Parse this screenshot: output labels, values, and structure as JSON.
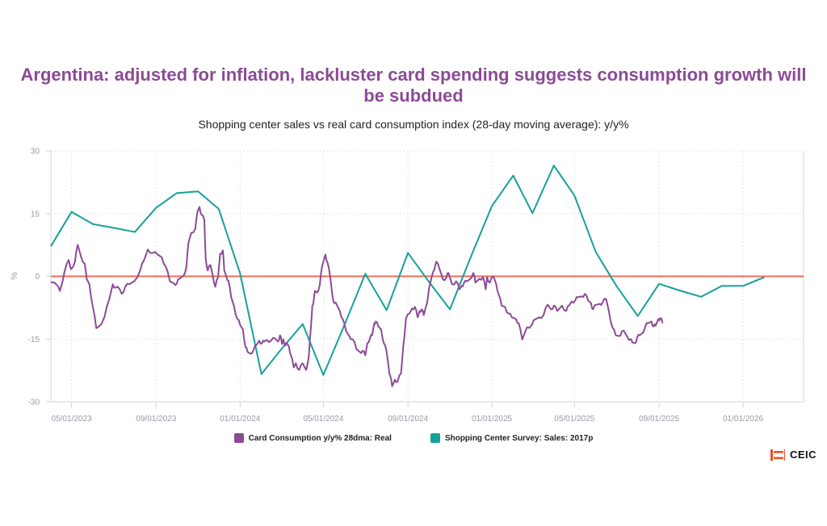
{
  "header": {
    "title": "Argentina: adjusted for inflation, lackluster card spending suggests consumption growth will be subdued",
    "subtitle": "Shopping center sales vs real card consumption index (28-day moving average): y/y%"
  },
  "branding": {
    "logo_text": "CEIC",
    "logo_color": "#f04e23"
  },
  "chart_data": {
    "type": "line",
    "title": "Argentina: adjusted for inflation, lackluster card spending suggests consumption growth will be subdued",
    "subtitle": "Shopping center sales vs real card consumption index (28-day moving average): y/y%",
    "xlabel": "",
    "ylabel": "%",
    "xlim": [
      "2023-04-01",
      "2026-03-30"
    ],
    "ylim": [
      -30,
      30
    ],
    "y_ticks": [
      30,
      15,
      0,
      -15,
      -30
    ],
    "y_tick_labels": [
      "30",
      "15",
      "0",
      "-15",
      "-30"
    ],
    "x_ticks": [
      "2023-05-01",
      "2023-09-01",
      "2024-01-01",
      "2024-05-01",
      "2024-09-01",
      "2025-01-01",
      "2025-05-01",
      "2025-09-01",
      "2026-01-01"
    ],
    "x_tick_labels": [
      "05/01/2023",
      "09/01/2023",
      "01/01/2024",
      "05/01/2024",
      "09/01/2024",
      "01/01/2025",
      "05/01/2025",
      "09/01/2025",
      "01/01/2026"
    ],
    "grid": true,
    "reference_line": {
      "value": 0,
      "color": "#f26b5b"
    },
    "legend_position": "bottom",
    "series": [
      {
        "name": "Card Consumption y/y% 28dma: Real",
        "color": "#8b4a96",
        "x_day_offset_from_2023-05-01": [
          -30,
          -19,
          -17,
          -10,
          -4,
          -1,
          5,
          9,
          14,
          19,
          22,
          26,
          31,
          36,
          40,
          48,
          55,
          60,
          64,
          70,
          73,
          78,
          84,
          91,
          100,
          105,
          111,
          118,
          125,
          131,
          137,
          143,
          149,
          153,
          157,
          163,
          167,
          170,
          174,
          180,
          183,
          186,
          189,
          193,
          195,
          198,
          202,
          205,
          209,
          213,
          216,
          220,
          222,
          225,
          228,
          232,
          236,
          241,
          245,
          249,
          253,
          256,
          260,
          265,
          269,
          273,
          277,
          280,
          284,
          290,
          296,
          300,
          303,
          306,
          308,
          311,
          313,
          316,
          319,
          323,
          326,
          331,
          336,
          341,
          345,
          348,
          350,
          352,
          354,
          357,
          361,
          364,
          369,
          372,
          376,
          379,
          382,
          386,
          390,
          394,
          399,
          403,
          409,
          414,
          419,
          423,
          427,
          430,
          434,
          437,
          440,
          442,
          446,
          450,
          454,
          458,
          461,
          463,
          466,
          470,
          474,
          479,
          482,
          486,
          491,
          495,
          499,
          503,
          506,
          509,
          512,
          515,
          518,
          521,
          525,
          530,
          535,
          540,
          545,
          548,
          553,
          559,
          564,
          567,
          570,
          575,
          578,
          584,
          587,
          593,
          598,
          602,
          604,
          608,
          613,
          617,
          621,
          625,
          630,
          635,
          640,
          646,
          650,
          655,
          662,
          669,
          675,
          680,
          686,
          692,
          697,
          701,
          706,
          713,
          719,
          723,
          727,
          732,
          736,
          742,
          746,
          751,
          755,
          758,
          763,
          768,
          772,
          777,
          781,
          786,
          791,
          796,
          800,
          805,
          808,
          812,
          815,
          819,
          822,
          826,
          829,
          834,
          838,
          843,
          846,
          849,
          853,
          856,
          859,
          861,
          865
        ],
        "values": [
          -1.4,
          -2.5,
          -3.5,
          1.2,
          3.9,
          1.7,
          3.5,
          7.5,
          4.6,
          3.1,
          -0.6,
          -1.9,
          -7.3,
          -12.4,
          -12,
          -9.7,
          -5.4,
          -1.9,
          -2.7,
          -3.1,
          -4.2,
          -2.5,
          -1.9,
          -1.2,
          1.5,
          3.7,
          6.4,
          5.6,
          5.2,
          4.6,
          2.3,
          -1.2,
          -1.7,
          -1.7,
          -0.6,
          0.2,
          2.3,
          8.1,
          10.4,
          11.4,
          15.4,
          16.6,
          14.7,
          13.5,
          4.2,
          1.4,
          2.7,
          0.4,
          -2.5,
          -0.2,
          5.4,
          6.2,
          1.4,
          0,
          -1,
          -5,
          -7,
          -10.2,
          -11.6,
          -12.7,
          -17,
          -18.1,
          -18.5,
          -17.4,
          -16.4,
          -15.4,
          -16,
          -15.6,
          -15.2,
          -15.4,
          -14.9,
          -15.6,
          -14.1,
          -16.2,
          -15.1,
          -16.6,
          -16,
          -16.8,
          -18.9,
          -21.8,
          -20.8,
          -22.4,
          -20.8,
          -22.4,
          -18.9,
          -12.2,
          -7,
          -5.8,
          -3.5,
          -3.9,
          -1.9,
          2.3,
          5.2,
          3.3,
          -0.2,
          -4.4,
          -6.4,
          -7,
          -8.3,
          -10.2,
          -13.1,
          -14.1,
          -15.1,
          -17.4,
          -18.1,
          -17.8,
          -18.9,
          -16,
          -14.7,
          -14.1,
          -11.2,
          -10.8,
          -12,
          -12.7,
          -16,
          -18,
          -21.8,
          -23.7,
          -26.3,
          -24.7,
          -25.1,
          -23.2,
          -17,
          -10.2,
          -8.9,
          -7.7,
          -7.3,
          -9.8,
          -8.3,
          -7.9,
          -9.3,
          -7.3,
          -5,
          -1.9,
          0.8,
          3.5,
          1.7,
          -0.8,
          -0.2,
          0.8,
          -1.9,
          -1.2,
          -3.1,
          -2.3,
          -1.7,
          -1.2,
          -0.8,
          0.8,
          -1.5,
          -0.6,
          -0.2,
          -3.1,
          -0.2,
          -1.5,
          0,
          -1.7,
          -4.4,
          -7,
          -7.3,
          -8.9,
          -9.8,
          -10.2,
          -11.2,
          -15.1,
          -12.2,
          -11.6,
          -10.2,
          -9.8,
          -9.3,
          -6.8,
          -7.9,
          -7,
          -8.3,
          -7,
          -8.3,
          -7,
          -6,
          -5.8,
          -5,
          -4.8,
          -4.2,
          -5.8,
          -6.4,
          -7.9,
          -6.8,
          -6.6,
          -6.2,
          -5.4,
          -8.3,
          -12.2,
          -14.1,
          -14.3,
          -13.1,
          -13.7,
          -14.5,
          -15.1,
          -15.8,
          -16,
          -14.7,
          -14.1,
          -13.7,
          -12,
          -11.2,
          -10.8,
          -12,
          -11.8,
          -10.2,
          -10,
          -11.2
        ]
      },
      {
        "name": "Shopping Center Survey: Sales: 2017p",
        "color": "#17a09b",
        "x": [
          "2023-04-01",
          "2023-05-01",
          "2023-06-01",
          "2023-07-01",
          "2023-08-01",
          "2023-09-01",
          "2023-10-01",
          "2023-11-01",
          "2023-12-01",
          "2024-01-01",
          "2024-02-01",
          "2024-03-01",
          "2024-04-01",
          "2024-05-01",
          "2024-06-01",
          "2024-07-01",
          "2024-08-01",
          "2024-09-01",
          "2024-10-01",
          "2024-11-01",
          "2024-12-01",
          "2025-01-01",
          "2025-02-01",
          "2025-03-01",
          "2025-04-01",
          "2025-05-01",
          "2025-06-01",
          "2025-07-01",
          "2025-08-01",
          "2025-09-01",
          "2025-10-01",
          "2025-11-01",
          "2025-12-01",
          "2026-01-01",
          "2026-02-01"
        ],
        "values": [
          7.2,
          15.4,
          12.5,
          11.6,
          10.6,
          16.4,
          19.9,
          20.3,
          16.1,
          0.7,
          -23.4,
          -17.4,
          -11.4,
          -23.6,
          -11.5,
          0.6,
          -8.1,
          5.6,
          -1.2,
          -7.9,
          4.5,
          16.8,
          24.1,
          15.1,
          26.5,
          19.3,
          5.8,
          -2.3,
          -9.5,
          -1.8,
          -3.4,
          -4.9,
          -2.3,
          -2.3,
          -0.2
        ]
      }
    ]
  }
}
